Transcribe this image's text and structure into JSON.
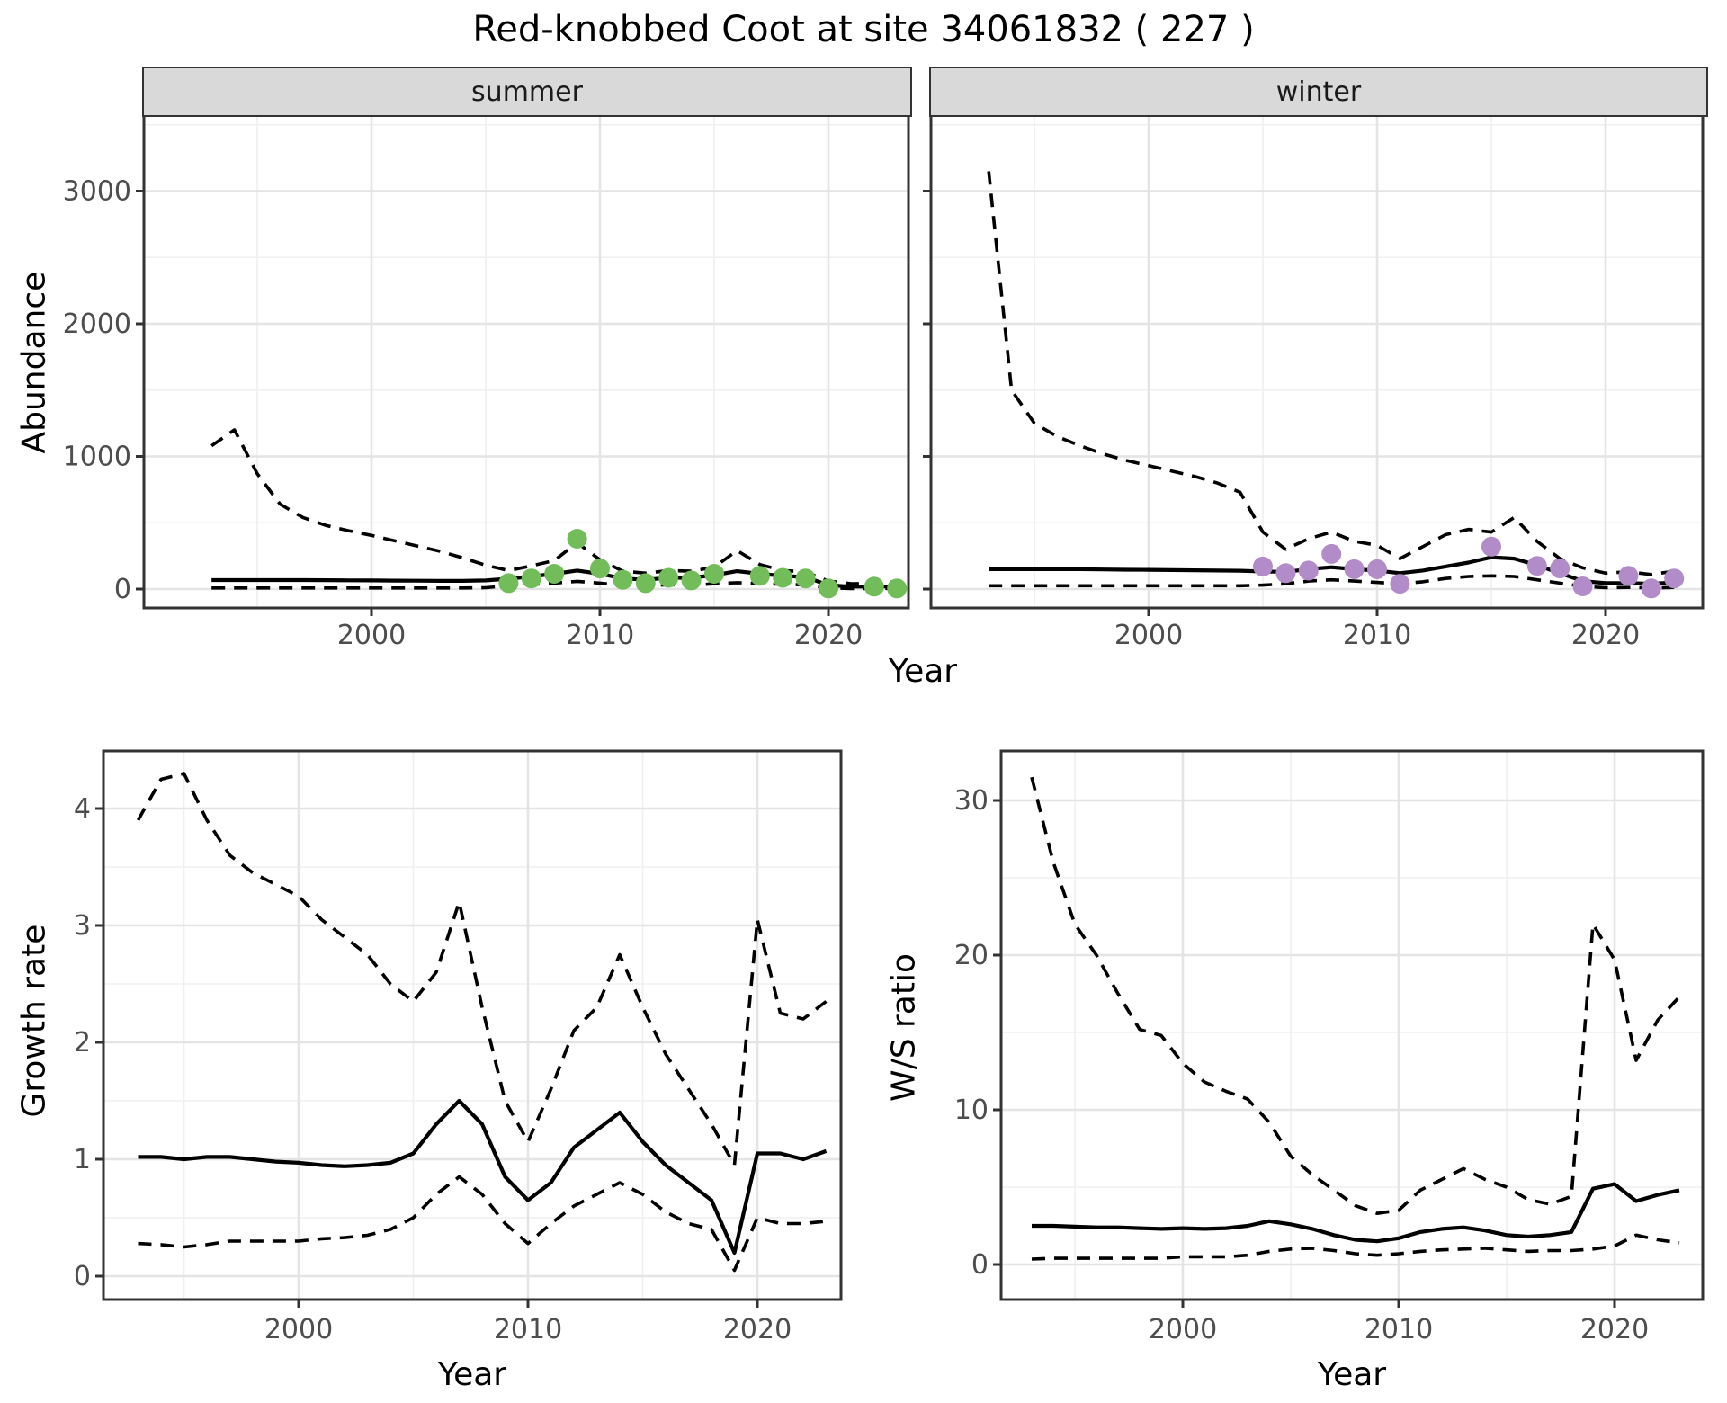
{
  "title": "Red-knobbed Coot at site 34061832 ( 227 )",
  "axis_titles": {
    "x": "Year",
    "abundance": "Abundance",
    "growth": "Growth rate",
    "ws": "W/S ratio"
  },
  "facets": {
    "summer": "summer",
    "winter": "winter"
  },
  "colors": {
    "summer_point": "#72BD59",
    "winter_point": "#B28CC8",
    "line": "#000000",
    "strip_bg": "#D9D9D9",
    "panel_border": "#333333",
    "grid_major": "#E4E4E4",
    "grid_minor": "#EFEFEF",
    "tick_text": "#4D4D4D"
  },
  "chart_data": [
    {
      "id": "abundance_summer",
      "type": "line",
      "facet_label": "summer",
      "ylabel": "Abundance",
      "xlabel": "Year",
      "x": [
        1993,
        1994,
        1995,
        1996,
        1997,
        1998,
        1999,
        2000,
        2001,
        2002,
        2003,
        2004,
        2005,
        2006,
        2007,
        2008,
        2009,
        2010,
        2011,
        2012,
        2013,
        2014,
        2015,
        2016,
        2017,
        2018,
        2019,
        2020,
        2021,
        2022,
        2023
      ],
      "series": [
        {
          "name": "median",
          "style": "solid",
          "values": [
            68,
            68,
            68,
            68,
            68,
            67,
            66,
            65,
            64,
            63,
            62,
            62,
            65,
            78,
            95,
            115,
            140,
            115,
            80,
            70,
            85,
            85,
            105,
            135,
            115,
            100,
            90,
            30,
            18,
            18,
            20
          ]
        },
        {
          "name": "upper_ci",
          "style": "dashed",
          "values": [
            1080,
            1200,
            870,
            640,
            540,
            480,
            440,
            405,
            365,
            325,
            285,
            235,
            180,
            140,
            175,
            215,
            350,
            220,
            135,
            120,
            140,
            135,
            165,
            290,
            185,
            140,
            130,
            60,
            40,
            45,
            55
          ]
        },
        {
          "name": "lower_ci",
          "style": "dashed",
          "values": [
            8,
            8,
            8,
            8,
            8,
            8,
            8,
            8,
            8,
            8,
            8,
            8,
            10,
            25,
            35,
            45,
            58,
            45,
            28,
            25,
            32,
            30,
            40,
            48,
            42,
            36,
            32,
            8,
            4,
            4,
            5
          ]
        }
      ],
      "points": {
        "name": "observed_counts",
        "color_key": "summer_point",
        "x": [
          2006,
          2007,
          2008,
          2009,
          2010,
          2011,
          2012,
          2013,
          2014,
          2015,
          2017,
          2018,
          2019,
          2020,
          2022,
          2023
        ],
        "y": [
          45,
          80,
          115,
          380,
          155,
          70,
          45,
          85,
          65,
          115,
          100,
          85,
          80,
          5,
          18,
          5
        ]
      },
      "x_ticks": [
        2000,
        2010,
        2020
      ],
      "x_minor": [
        1995,
        2005,
        2015
      ],
      "y_ticks": [
        0,
        1000,
        2000,
        3000
      ],
      "y_minor": [
        500,
        1500,
        2500,
        3500
      ],
      "ylim": [
        -150,
        3550
      ],
      "show_y_tick_labels": true
    },
    {
      "id": "abundance_winter",
      "type": "line",
      "facet_label": "winter",
      "ylabel": "Abundance",
      "xlabel": "Year",
      "x": [
        1993,
        1994,
        1995,
        1996,
        1997,
        1998,
        1999,
        2000,
        2001,
        2002,
        2003,
        2004,
        2005,
        2006,
        2007,
        2008,
        2009,
        2010,
        2011,
        2012,
        2013,
        2014,
        2015,
        2016,
        2017,
        2018,
        2019,
        2020,
        2021,
        2022,
        2023
      ],
      "series": [
        {
          "name": "median",
          "style": "solid",
          "values": [
            150,
            150,
            150,
            150,
            150,
            148,
            146,
            145,
            143,
            142,
            140,
            138,
            132,
            130,
            150,
            165,
            150,
            140,
            120,
            140,
            170,
            200,
            240,
            230,
            180,
            120,
            60,
            45,
            45,
            40,
            50
          ]
        },
        {
          "name": "upper_ci",
          "style": "dashed",
          "values": [
            3150,
            1500,
            1250,
            1150,
            1080,
            1020,
            970,
            930,
            890,
            850,
            800,
            730,
            430,
            300,
            380,
            430,
            360,
            330,
            230,
            320,
            410,
            450,
            430,
            540,
            360,
            230,
            160,
            120,
            130,
            110,
            135
          ]
        },
        {
          "name": "lower_ci",
          "style": "dashed",
          "values": [
            25,
            25,
            25,
            25,
            25,
            25,
            25,
            25,
            25,
            25,
            25,
            25,
            30,
            40,
            60,
            70,
            60,
            50,
            40,
            55,
            80,
            95,
            100,
            95,
            70,
            45,
            20,
            10,
            12,
            8,
            12
          ]
        }
      ],
      "points": {
        "name": "observed_counts",
        "color_key": "winter_point",
        "x": [
          2005,
          2006,
          2007,
          2008,
          2009,
          2010,
          2011,
          2015,
          2017,
          2018,
          2019,
          2021,
          2022,
          2023
        ],
        "y": [
          170,
          120,
          140,
          265,
          150,
          150,
          40,
          320,
          175,
          155,
          20,
          100,
          5,
          80
        ]
      },
      "x_ticks": [
        2000,
        2010,
        2020
      ],
      "x_minor": [
        1995,
        2005,
        2015
      ],
      "y_ticks": [
        0,
        1000,
        2000,
        3000
      ],
      "y_minor": [
        500,
        1500,
        2500,
        3500
      ],
      "ylim": [
        -150,
        3550
      ],
      "show_y_tick_labels": false
    },
    {
      "id": "growth_rate",
      "type": "line",
      "ylabel": "Growth rate",
      "xlabel": "Year",
      "x": [
        1993,
        1994,
        1995,
        1996,
        1997,
        1998,
        1999,
        2000,
        2001,
        2002,
        2003,
        2004,
        2005,
        2006,
        2007,
        2008,
        2009,
        2010,
        2011,
        2012,
        2013,
        2014,
        2015,
        2016,
        2017,
        2018,
        2019,
        2020,
        2021,
        2022,
        2023
      ],
      "series": [
        {
          "name": "median",
          "style": "solid",
          "values": [
            1.02,
            1.02,
            1.0,
            1.02,
            1.02,
            1.0,
            0.98,
            0.97,
            0.95,
            0.94,
            0.95,
            0.97,
            1.05,
            1.3,
            1.5,
            1.3,
            0.85,
            0.65,
            0.8,
            1.1,
            1.25,
            1.4,
            1.15,
            0.95,
            0.8,
            0.65,
            0.2,
            1.05,
            1.05,
            1.0,
            1.07
          ]
        },
        {
          "name": "upper_ci",
          "style": "dashed",
          "values": [
            3.9,
            4.25,
            4.3,
            3.9,
            3.6,
            3.45,
            3.35,
            3.25,
            3.05,
            2.9,
            2.75,
            2.5,
            2.35,
            2.6,
            3.2,
            2.3,
            1.5,
            1.15,
            1.6,
            2.1,
            2.3,
            2.75,
            2.3,
            1.9,
            1.6,
            1.3,
            0.95,
            3.05,
            2.25,
            2.2,
            2.35
          ]
        },
        {
          "name": "lower_ci",
          "style": "dashed",
          "values": [
            0.28,
            0.27,
            0.25,
            0.27,
            0.3,
            0.3,
            0.3,
            0.3,
            0.32,
            0.33,
            0.35,
            0.4,
            0.5,
            0.7,
            0.85,
            0.7,
            0.45,
            0.28,
            0.45,
            0.6,
            0.7,
            0.8,
            0.7,
            0.55,
            0.45,
            0.4,
            0.05,
            0.5,
            0.45,
            0.45,
            0.47
          ]
        }
      ],
      "x_ticks": [
        2000,
        2010,
        2020
      ],
      "x_minor": [
        1995,
        2005,
        2015
      ],
      "y_ticks": [
        0,
        1,
        2,
        3,
        4
      ],
      "y_minor": [
        0.5,
        1.5,
        2.5,
        3.5
      ],
      "ylim": [
        -0.2,
        4.5
      ],
      "show_y_tick_labels": true
    },
    {
      "id": "ws_ratio",
      "type": "line",
      "ylabel": "W/S ratio",
      "xlabel": "Year",
      "x": [
        1993,
        1994,
        1995,
        1996,
        1997,
        1998,
        1999,
        2000,
        2001,
        2002,
        2003,
        2004,
        2005,
        2006,
        2007,
        2008,
        2009,
        2010,
        2011,
        2012,
        2013,
        2014,
        2015,
        2016,
        2017,
        2018,
        2019,
        2020,
        2021,
        2022,
        2023
      ],
      "series": [
        {
          "name": "median",
          "style": "solid",
          "values": [
            2.5,
            2.5,
            2.45,
            2.4,
            2.4,
            2.35,
            2.3,
            2.35,
            2.3,
            2.35,
            2.5,
            2.8,
            2.6,
            2.3,
            1.9,
            1.6,
            1.5,
            1.7,
            2.1,
            2.3,
            2.4,
            2.2,
            1.9,
            1.8,
            1.9,
            2.1,
            4.9,
            5.2,
            4.1,
            4.5,
            4.8
          ]
        },
        {
          "name": "upper_ci",
          "style": "dashed",
          "values": [
            31.5,
            26,
            22,
            20,
            17.5,
            15.2,
            14.8,
            13,
            11.8,
            11.2,
            10.7,
            9.2,
            7.0,
            5.8,
            4.8,
            3.8,
            3.3,
            3.5,
            4.8,
            5.5,
            6.2,
            5.5,
            5.0,
            4.2,
            3.9,
            4.4,
            22.0,
            19.7,
            13.2,
            15.8,
            17.3
          ]
        },
        {
          "name": "lower_ci",
          "style": "dashed",
          "values": [
            0.35,
            0.4,
            0.4,
            0.4,
            0.4,
            0.4,
            0.4,
            0.5,
            0.5,
            0.5,
            0.6,
            0.85,
            1.0,
            1.05,
            0.9,
            0.7,
            0.6,
            0.7,
            0.85,
            0.95,
            1.0,
            1.05,
            0.95,
            0.85,
            0.9,
            0.9,
            1.0,
            1.2,
            1.9,
            1.6,
            1.4
          ]
        }
      ],
      "x_ticks": [
        2000,
        2010,
        2020
      ],
      "x_minor": [
        1995,
        2005,
        2015
      ],
      "y_ticks": [
        0,
        10,
        20,
        30
      ],
      "y_minor": [
        5,
        15,
        25
      ],
      "ylim": [
        -2.3,
        33.2
      ],
      "show_y_tick_labels": true
    }
  ]
}
